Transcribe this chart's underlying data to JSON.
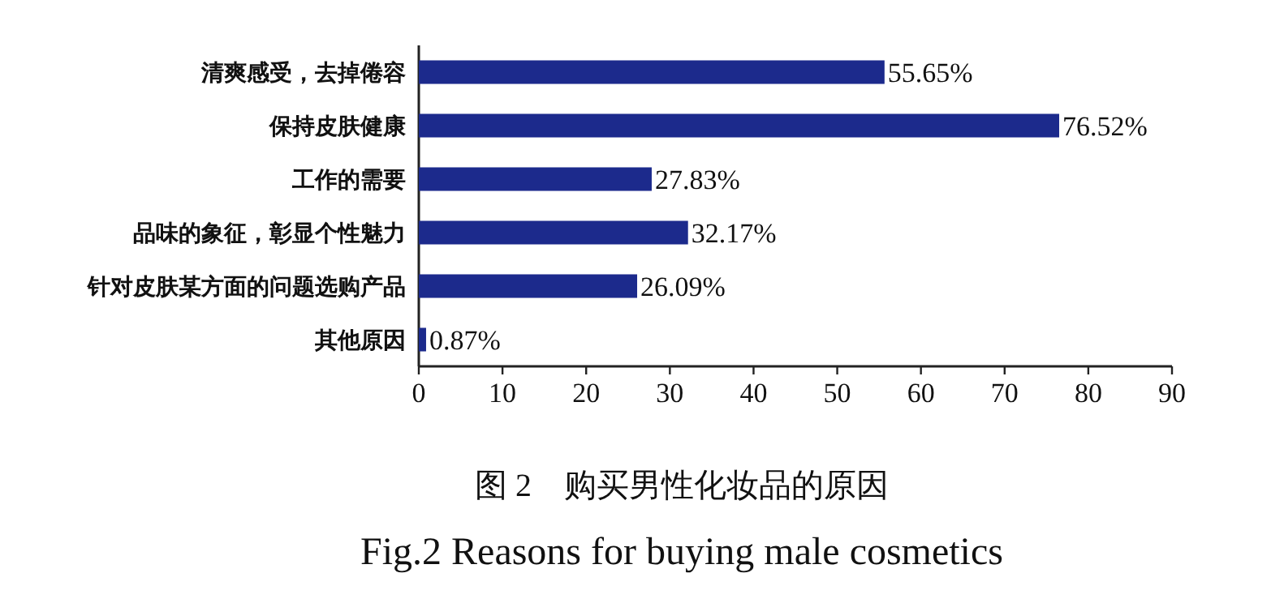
{
  "chart_data": {
    "type": "bar",
    "orientation": "horizontal",
    "title": "图 2　购买男性化妆品的原因",
    "subtitle": "Fig.2 Reasons for buying male cosmetics",
    "categories": [
      "清爽感受，去掉倦容",
      "保持皮肤健康",
      "工作的需要",
      "品味的象征，彰显个性魅力",
      "针对皮肤某方面的问题选购产品",
      "其他原因"
    ],
    "values": [
      55.65,
      76.52,
      27.83,
      32.17,
      26.09,
      0.87
    ],
    "value_labels": [
      "55.65%",
      "76.52%",
      "27.83%",
      "32.17%",
      "26.09%",
      "0.87%"
    ],
    "color": "#1c2a8c",
    "xlim": [
      0,
      90
    ],
    "xticks": [
      0,
      10,
      20,
      30,
      40,
      50,
      60,
      70,
      80,
      90
    ]
  }
}
